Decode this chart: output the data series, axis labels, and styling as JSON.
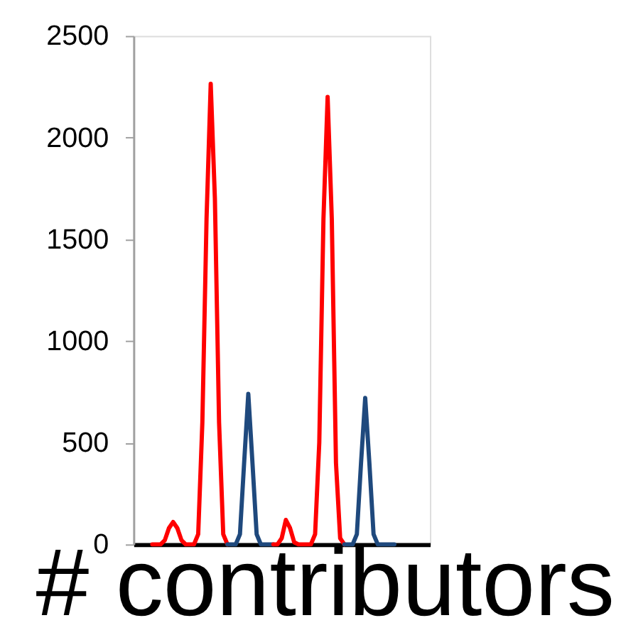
{
  "chart_data": {
    "type": "line",
    "xlabel": "# contributors",
    "categories": [
      null,
      null,
      null,
      null,
      null,
      null,
      null,
      null,
      null,
      null,
      null,
      null,
      null,
      null,
      null,
      null,
      null,
      null,
      null,
      null,
      null,
      null,
      null,
      null,
      null,
      null,
      null,
      null,
      null,
      null,
      null,
      null,
      null,
      null,
      null,
      null,
      null,
      null,
      null,
      null,
      null,
      null,
      null,
      null,
      null,
      null,
      null,
      null,
      null,
      null,
      null,
      null,
      null,
      null,
      null,
      null,
      null,
      null,
      null,
      null,
      null,
      null,
      null,
      null,
      null,
      null,
      null,
      null,
      null,
      null,
      null
    ],
    "series": [
      {
        "color": "#ff0000",
        "values": [
          null,
          null,
          null,
          null,
          0,
          0,
          0,
          20,
          80,
          110,
          80,
          20,
          0,
          0,
          0,
          50,
          600,
          1600,
          2265,
          1700,
          600,
          50,
          0,
          null,
          null,
          null,
          null,
          null,
          null,
          null,
          null,
          null,
          null,
          null,
          null,
          null,
          null,
          null,
          null,
          null,
          null,
          null,
          null,
          null,
          null,
          null,
          null,
          null,
          null,
          null,
          null,
          null,
          null,
          null,
          null,
          null,
          null,
          null,
          null,
          null,
          null,
          null,
          null,
          null,
          null,
          null,
          null,
          null,
          null,
          null,
          null
        ]
      },
      {
        "color": "#1f497d",
        "values": [
          null,
          null,
          null,
          null,
          null,
          null,
          null,
          null,
          null,
          null,
          null,
          null,
          null,
          null,
          null,
          null,
          null,
          null,
          null,
          null,
          null,
          null,
          0,
          0,
          0,
          50,
          400,
          740,
          400,
          50,
          0,
          0,
          0,
          0,
          null,
          null,
          null,
          null,
          null,
          null,
          null,
          null,
          null,
          null,
          null,
          null,
          null,
          null,
          null,
          null,
          null,
          null,
          null,
          null,
          null,
          null,
          null,
          null,
          null,
          null,
          null,
          null,
          null,
          null,
          null,
          null,
          null,
          null,
          null,
          null,
          null
        ]
      },
      {
        "color": "#ff0000",
        "values": [
          null,
          null,
          null,
          null,
          null,
          null,
          null,
          null,
          null,
          null,
          null,
          null,
          null,
          null,
          null,
          null,
          null,
          null,
          null,
          null,
          null,
          null,
          null,
          null,
          null,
          null,
          null,
          null,
          null,
          null,
          null,
          null,
          null,
          0,
          0,
          30,
          120,
          80,
          10,
          0,
          0,
          0,
          0,
          50,
          500,
          1600,
          2200,
          1600,
          400,
          30,
          0,
          null,
          null,
          null,
          null,
          null,
          null,
          null,
          null,
          null,
          null,
          null,
          null,
          null,
          null,
          null,
          null,
          null,
          null,
          null,
          null
        ]
      },
      {
        "color": "#1f497d",
        "values": [
          null,
          null,
          null,
          null,
          null,
          null,
          null,
          null,
          null,
          null,
          null,
          null,
          null,
          null,
          null,
          null,
          null,
          null,
          null,
          null,
          null,
          null,
          null,
          null,
          null,
          null,
          null,
          null,
          null,
          null,
          null,
          null,
          null,
          null,
          null,
          null,
          null,
          null,
          null,
          null,
          null,
          null,
          null,
          null,
          null,
          null,
          null,
          null,
          null,
          null,
          0,
          0,
          0,
          50,
          400,
          720,
          400,
          50,
          0,
          0,
          0,
          0,
          0,
          null,
          null,
          null,
          null,
          null,
          null,
          null,
          null
        ]
      }
    ],
    "ylim": [
      0,
      2500
    ],
    "yticks": [
      0,
      500,
      1000,
      1500,
      2000,
      2500
    ],
    "grid": false,
    "legend": false
  }
}
